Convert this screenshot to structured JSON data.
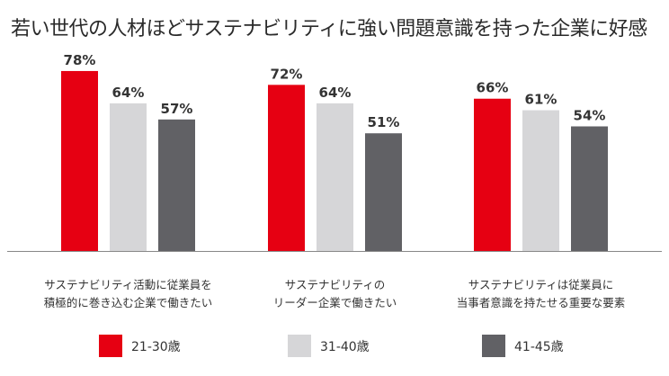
{
  "chart_data": {
    "type": "bar",
    "title": "若い世代の人材ほどサステナビリティに強い問題意識を持った企業に好感",
    "xlabel": "",
    "ylabel": "",
    "ylim": [
      0,
      85
    ],
    "grid": false,
    "legend_position": "bottom",
    "categories": [
      [
        "サステナビリティ活動に従業員を",
        "積極的に巻き込む企業で働きたい"
      ],
      [
        "サステナビリティの",
        "リーダー企業で働きたい"
      ],
      [
        "サステナビリティは従業員に",
        "当事者意識を持たせる重要な要素"
      ]
    ],
    "series": [
      {
        "name": "21-30歳",
        "color": "#e60012",
        "values": [
          78,
          72,
          66
        ],
        "labels": [
          "78%",
          "72%",
          "66%"
        ]
      },
      {
        "name": "31-40歳",
        "color": "#d6d6d8",
        "values": [
          64,
          64,
          61
        ],
        "labels": [
          "64%",
          "64%",
          "61%"
        ]
      },
      {
        "name": "41-45歳",
        "color": "#616165",
        "values": [
          57,
          51,
          54
        ],
        "labels": [
          "57%",
          "51%",
          "54%"
        ]
      }
    ],
    "baseline_color": "#888888"
  }
}
